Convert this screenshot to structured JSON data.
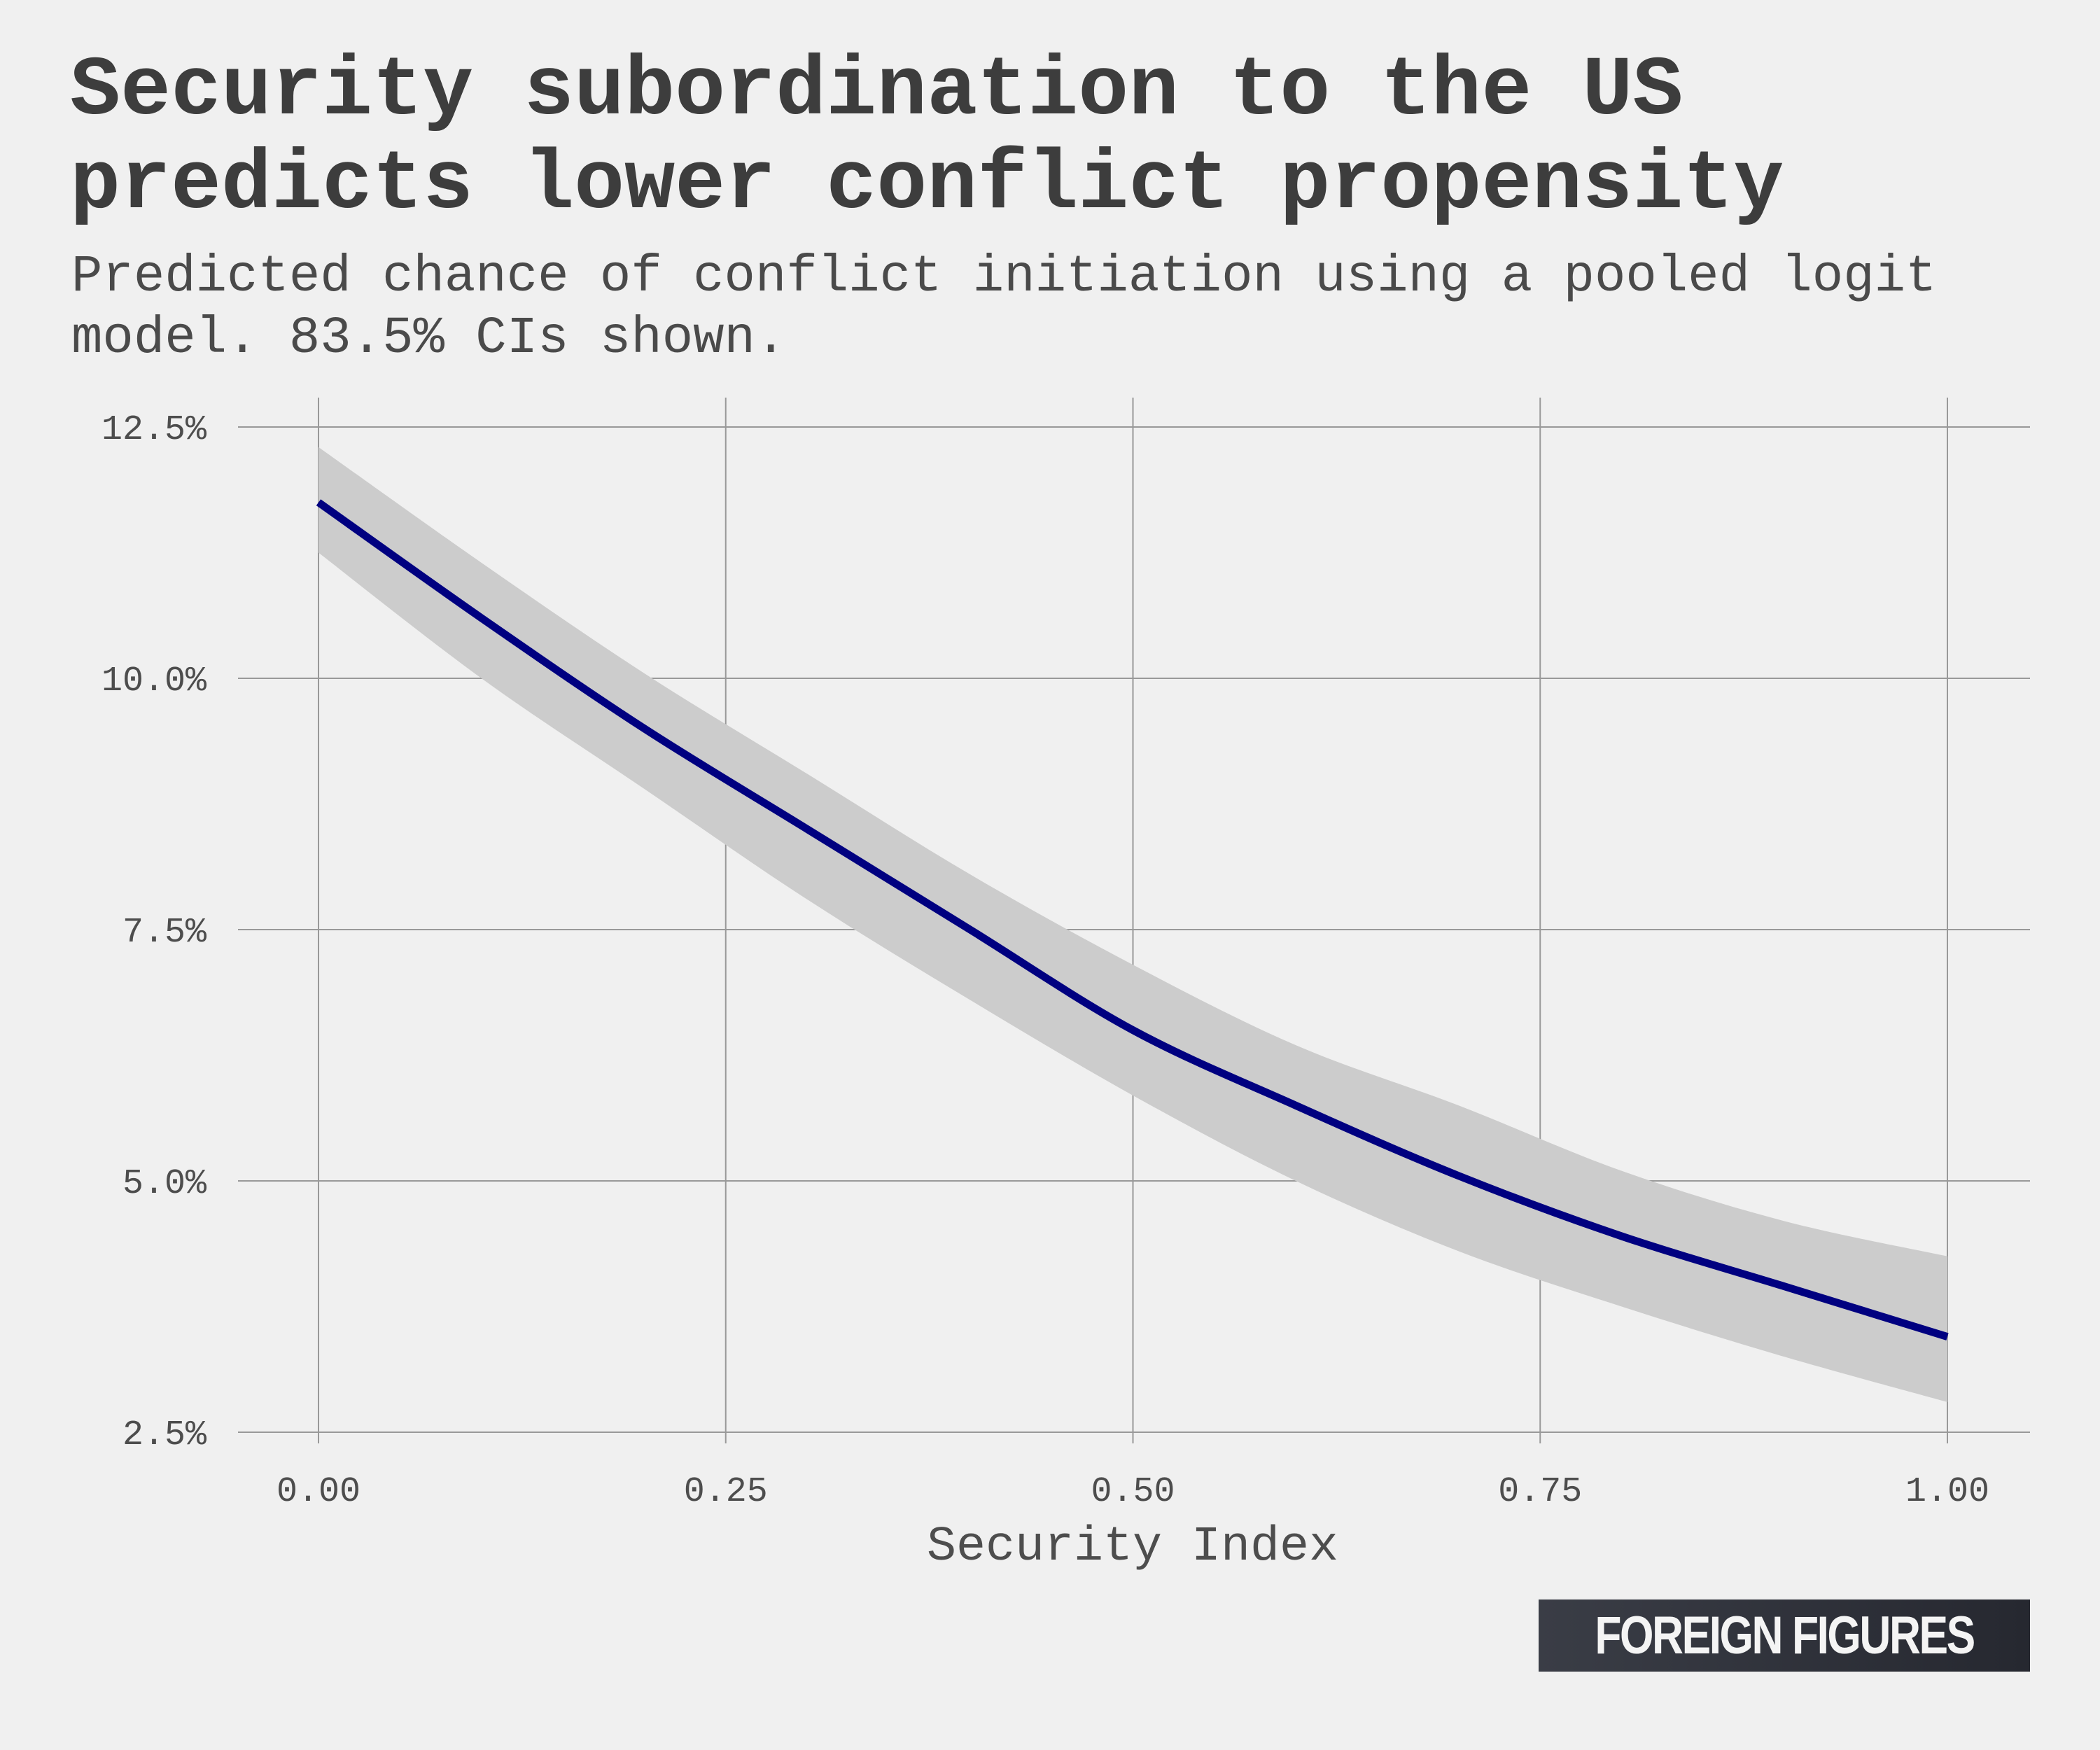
{
  "header": {
    "title": "Security subordination to the US predicts lower conflict propensity",
    "subtitle": "Predicted chance of conflict initiation using a pooled logit model. 83.5% CIs shown."
  },
  "brand": {
    "text": "FOREIGN FIGURES"
  },
  "colors": {
    "background": "#f0f0f0",
    "line": "#000080",
    "ribbon": "#cccccc",
    "grid": "#999999",
    "brand_bg": "#2e3038"
  },
  "chart_data": {
    "type": "line",
    "xlabel": "Security Index",
    "ylabel": "",
    "xlim": [
      -0.1,
      1.05
    ],
    "ylim": [
      2.5,
      12.5
    ],
    "grid": true,
    "x_ticks": [
      0.0,
      0.25,
      0.5,
      0.75,
      1.0
    ],
    "x_tick_labels": [
      "0.00",
      "0.25",
      "0.50",
      "0.75",
      "1.00"
    ],
    "y_ticks": [
      2.5,
      5.0,
      7.5,
      10.0,
      12.5
    ],
    "y_tick_labels": [
      "2.5%",
      "5.0%",
      "7.5%",
      "10.0%",
      "12.5%"
    ],
    "series": [
      {
        "x": [
          0.0,
          0.1,
          0.2,
          0.3,
          0.4,
          0.5,
          0.6,
          0.7,
          0.8,
          0.9,
          1.0
        ],
        "values": [
          11.75,
          10.6,
          9.5,
          8.5,
          7.5,
          6.5,
          5.75,
          5.05,
          4.45,
          3.95,
          3.45
        ],
        "lower": [
          11.25,
          10.0,
          8.9,
          7.8,
          6.8,
          5.85,
          5.0,
          4.3,
          3.75,
          3.25,
          2.8
        ],
        "upper": [
          12.3,
          11.15,
          10.05,
          9.05,
          8.05,
          7.15,
          6.35,
          5.75,
          5.1,
          4.6,
          4.25
        ]
      }
    ]
  }
}
